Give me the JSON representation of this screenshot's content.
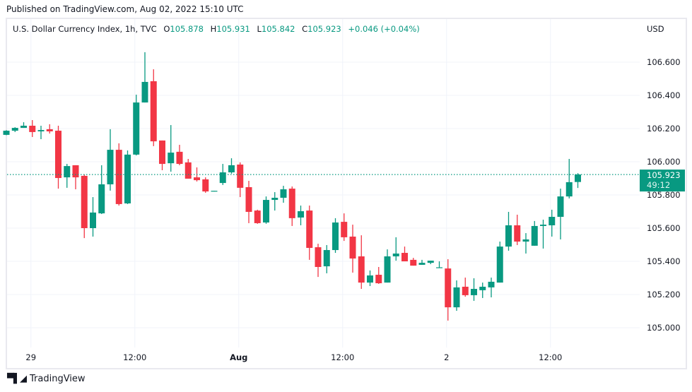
{
  "published": "Published on TradingView.com, Aug 02, 2022 15:10 UTC",
  "legend": {
    "symbol": "U.S. Dollar Currency Index, 1h, TVC",
    "o_label": "O",
    "o": "105.878",
    "h_label": "H",
    "h": "105.931",
    "l_label": "L",
    "l": "105.842",
    "c_label": "C",
    "c": "105.923",
    "change": "+0.046 (+0.04%)"
  },
  "currency": "USD",
  "current_price": {
    "price": "105.923",
    "countdown": "49:12",
    "value": 105.923
  },
  "footer": {
    "brand": "TradingView",
    "logo_text": "TV"
  },
  "colors": {
    "up": "#089981",
    "down": "#f23645",
    "grid": "#f0f3fa",
    "text": "#131722"
  },
  "chart_data": {
    "type": "candlestick",
    "title": "U.S. Dollar Currency Index, 1h, TVC",
    "ylim": [
      104.87,
      106.87
    ],
    "yticks": [
      "106.600",
      "106.400",
      "106.200",
      "106.000",
      "105.800",
      "105.600",
      "105.400",
      "105.200",
      "105.000"
    ],
    "xticks": [
      {
        "label": "29",
        "index": 3,
        "bold": false
      },
      {
        "label": "12:00",
        "index": 15,
        "bold": false
      },
      {
        "label": "Aug",
        "index": 27,
        "bold": true
      },
      {
        "label": "12:00",
        "index": 39,
        "bold": false
      },
      {
        "label": "2",
        "index": 51,
        "bold": false
      },
      {
        "label": "12:00",
        "index": 63,
        "bold": false
      }
    ],
    "ohlc": [
      [
        106.162,
        106.19,
        106.16,
        106.187
      ],
      [
        106.187,
        106.208,
        106.179,
        106.204
      ],
      [
        106.204,
        106.238,
        106.204,
        106.217
      ],
      [
        106.217,
        106.251,
        106.149,
        106.179
      ],
      [
        106.183,
        106.217,
        106.136,
        106.191
      ],
      [
        106.196,
        106.226,
        106.17,
        106.183
      ],
      [
        106.187,
        106.217,
        105.838,
        105.902
      ],
      [
        105.906,
        105.987,
        105.843,
        105.974
      ],
      [
        105.979,
        105.979,
        105.834,
        105.906
      ],
      [
        105.915,
        105.923,
        105.54,
        105.6
      ],
      [
        105.6,
        105.787,
        105.549,
        105.694
      ],
      [
        105.689,
        105.979,
        105.685,
        105.864
      ],
      [
        105.864,
        106.196,
        105.826,
        106.072
      ],
      [
        106.072,
        106.111,
        105.736,
        105.745
      ],
      [
        105.749,
        106.068,
        105.745,
        106.043
      ],
      [
        106.043,
        106.404,
        106.038,
        106.357
      ],
      [
        106.357,
        106.66,
        106.357,
        106.481
      ],
      [
        106.485,
        106.557,
        106.094,
        106.123
      ],
      [
        106.128,
        106.128,
        105.949,
        105.987
      ],
      [
        105.991,
        106.221,
        105.94,
        106.055
      ],
      [
        106.06,
        106.102,
        105.979,
        105.987
      ],
      [
        105.996,
        106.017,
        105.898,
        105.898
      ],
      [
        105.906,
        105.966,
        105.881,
        105.889
      ],
      [
        105.894,
        105.906,
        105.813,
        105.821
      ],
      [
        105.821,
        105.825,
        105.821,
        105.825
      ],
      [
        105.872,
        105.987,
        105.86,
        105.936
      ],
      [
        105.936,
        106.021,
        105.928,
        105.979
      ],
      [
        105.983,
        105.996,
        105.787,
        105.843
      ],
      [
        105.847,
        105.885,
        105.63,
        105.698
      ],
      [
        105.706,
        105.711,
        105.626,
        105.63
      ],
      [
        105.634,
        105.791,
        105.626,
        105.77
      ],
      [
        105.77,
        105.817,
        105.706,
        105.783
      ],
      [
        105.783,
        105.855,
        105.753,
        105.834
      ],
      [
        105.838,
        105.851,
        105.613,
        105.66
      ],
      [
        105.664,
        105.736,
        105.617,
        105.702
      ],
      [
        105.706,
        105.736,
        105.409,
        105.481
      ],
      [
        105.485,
        105.506,
        105.306,
        105.366
      ],
      [
        105.37,
        105.498,
        105.328,
        105.468
      ],
      [
        105.468,
        105.66,
        105.451,
        105.634
      ],
      [
        105.638,
        105.689,
        105.523,
        105.545
      ],
      [
        105.549,
        105.621,
        105.332,
        105.417
      ],
      [
        105.43,
        105.557,
        105.234,
        105.272
      ],
      [
        105.272,
        105.345,
        105.251,
        105.315
      ],
      [
        105.319,
        105.366,
        105.264,
        105.268
      ],
      [
        105.272,
        105.472,
        105.272,
        105.43
      ],
      [
        105.43,
        105.545,
        105.404,
        105.447
      ],
      [
        105.451,
        105.489,
        105.4,
        105.4
      ],
      [
        105.409,
        105.421,
        105.374,
        105.374
      ],
      [
        105.379,
        105.409,
        105.379,
        105.391
      ],
      [
        105.391,
        105.404,
        105.383,
        105.404
      ],
      [
        105.362,
        105.4,
        105.36,
        105.364
      ],
      [
        105.357,
        105.413,
        105.043,
        105.123
      ],
      [
        105.123,
        105.285,
        105.102,
        105.243
      ],
      [
        105.247,
        105.302,
        105.187,
        105.196
      ],
      [
        105.196,
        105.298,
        105.162,
        105.234
      ],
      [
        105.226,
        105.272,
        105.179,
        105.247
      ],
      [
        105.243,
        105.302,
        105.183,
        105.277
      ],
      [
        105.272,
        105.519,
        105.272,
        105.489
      ],
      [
        105.489,
        105.698,
        105.464,
        105.617
      ],
      [
        105.617,
        105.681,
        105.498,
        105.519
      ],
      [
        105.519,
        105.57,
        105.447,
        105.532
      ],
      [
        105.494,
        105.643,
        105.494,
        105.613
      ],
      [
        105.613,
        105.651,
        105.477,
        105.621
      ],
      [
        105.617,
        105.711,
        105.549,
        105.668
      ],
      [
        105.668,
        105.838,
        105.532,
        105.791
      ],
      [
        105.791,
        106.017,
        105.779,
        105.877
      ],
      [
        105.878,
        105.931,
        105.842,
        105.923
      ]
    ]
  }
}
